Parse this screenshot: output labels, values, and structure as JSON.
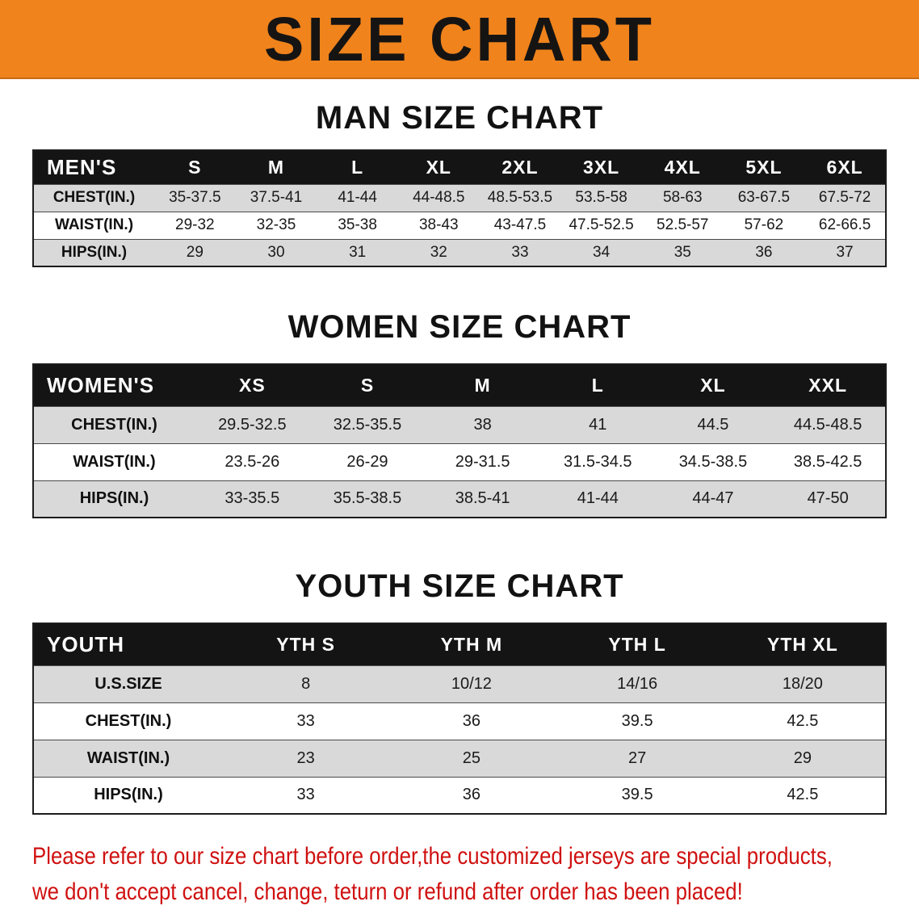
{
  "banner": {
    "title": "SIZE CHART"
  },
  "colors": {
    "banner_bg": "#f0831c",
    "header_bg": "#141414",
    "row_alt_bg": "#d9d9d9",
    "disclaimer_red": "#cf1110"
  },
  "sections": [
    {
      "heading": "MAN SIZE CHART",
      "table": {
        "header": [
          "MEN'S",
          "S",
          "M",
          "L",
          "XL",
          "2XL",
          "3XL",
          "4XL",
          "5XL",
          "6XL"
        ],
        "rows": [
          {
            "label": "CHEST(IN.)",
            "values": [
              "35-37.5",
              "37.5-41",
              "41-44",
              "44-48.5",
              "48.5-53.5",
              "53.5-58",
              "58-63",
              "63-67.5",
              "67.5-72"
            ]
          },
          {
            "label": "WAIST(IN.)",
            "values": [
              "29-32",
              "32-35",
              "35-38",
              "38-43",
              "43-47.5",
              "47.5-52.5",
              "52.5-57",
              "57-62",
              "62-66.5"
            ]
          },
          {
            "label": "HIPS(IN.)",
            "values": [
              "29",
              "30",
              "31",
              "32",
              "33",
              "34",
              "35",
              "36",
              "37"
            ]
          }
        ]
      }
    },
    {
      "heading": "WOMEN SIZE CHART",
      "table": {
        "header": [
          "WOMEN'S",
          "XS",
          "S",
          "M",
          "L",
          "XL",
          "XXL"
        ],
        "rows": [
          {
            "label": "CHEST(IN.)",
            "values": [
              "29.5-32.5",
              "32.5-35.5",
              "38",
              "41",
              "44.5",
              "44.5-48.5"
            ]
          },
          {
            "label": "WAIST(IN.)",
            "values": [
              "23.5-26",
              "26-29",
              "29-31.5",
              "31.5-34.5",
              "34.5-38.5",
              "38.5-42.5"
            ]
          },
          {
            "label": "HIPS(IN.)",
            "values": [
              "33-35.5",
              "35.5-38.5",
              "38.5-41",
              "41-44",
              "44-47",
              "47-50"
            ]
          }
        ]
      }
    },
    {
      "heading": "YOUTH SIZE CHART",
      "table": {
        "header": [
          "YOUTH",
          "YTH S",
          "YTH M",
          "YTH L",
          "YTH XL"
        ],
        "rows": [
          {
            "label": "U.S.SIZE",
            "values": [
              "8",
              "10/12",
              "14/16",
              "18/20"
            ]
          },
          {
            "label": "CHEST(IN.)",
            "values": [
              "33",
              "36",
              "39.5",
              "42.5"
            ]
          },
          {
            "label": "WAIST(IN.)",
            "values": [
              "23",
              "25",
              "27",
              "29"
            ]
          },
          {
            "label": "HIPS(IN.)",
            "values": [
              "33",
              "36",
              "39.5",
              "42.5"
            ]
          }
        ]
      }
    }
  ],
  "disclaimer": {
    "line1": "Please refer to our size chart before order,the customized jerseys are special products,",
    "line2": "we don't accept cancel, change, teturn or refund after order has been placed!"
  }
}
